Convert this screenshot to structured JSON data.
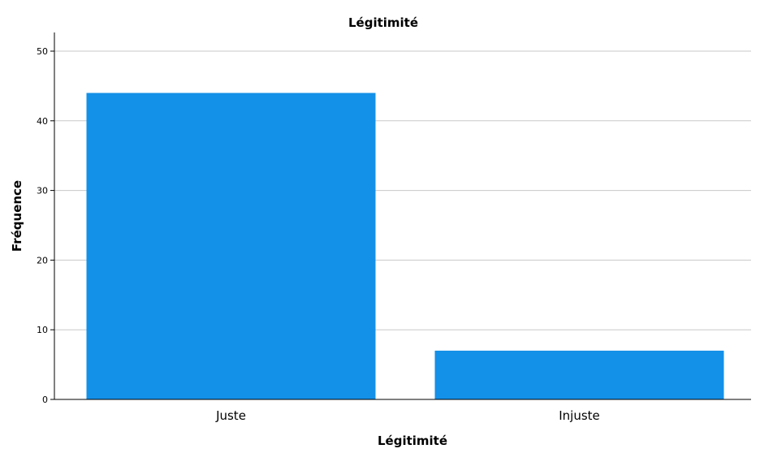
{
  "chart_data": {
    "type": "bar",
    "title": "Légitimité",
    "xlabel": "Légitimité",
    "ylabel": "Fréquence",
    "categories": [
      "Juste",
      "Injuste"
    ],
    "values": [
      44,
      7
    ],
    "ylim": [
      0,
      50
    ],
    "yticks": [
      0,
      10,
      20,
      30,
      40,
      50
    ],
    "ytick_labels": [
      "0",
      "10",
      "20",
      "30",
      "40",
      "50"
    ],
    "grid": true,
    "legend": "none",
    "bar_color": "#1390e8",
    "grid_color": "#c8c8c8"
  }
}
